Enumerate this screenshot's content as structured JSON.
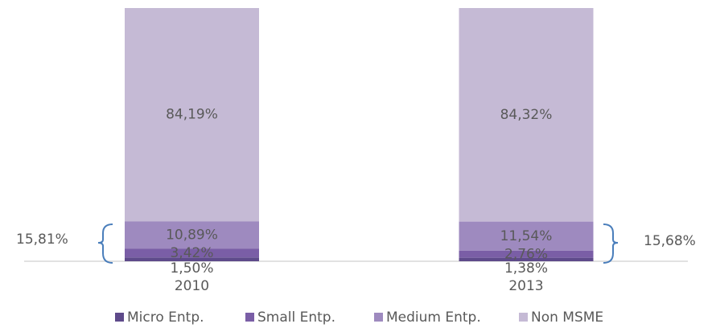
{
  "chart_data": {
    "type": "bar",
    "stacked": true,
    "categories": [
      "2010",
      "2013"
    ],
    "series": [
      {
        "name": "Micro Entp.",
        "color": "#5e4a8a",
        "values": [
          1.5,
          1.38
        ],
        "value_labels": [
          "1,50%",
          "1,38%"
        ]
      },
      {
        "name": "Small Entp.",
        "color": "#7a5ea6",
        "values": [
          3.42,
          2.76
        ],
        "value_labels": [
          "3,42%",
          "2,76%"
        ]
      },
      {
        "name": "Medium Entp.",
        "color": "#9e8abf",
        "values": [
          10.89,
          11.54
        ],
        "value_labels": [
          "10,89%",
          "11,54%"
        ]
      },
      {
        "name": "Non MSME",
        "color": "#c5bad5",
        "values": [
          84.19,
          84.32
        ],
        "value_labels": [
          "84,19%",
          "84,32%"
        ]
      }
    ],
    "annotations": [
      "15,81%",
      "15,68%"
    ],
    "ylim": [
      0,
      100
    ],
    "legend": "bottom"
  }
}
